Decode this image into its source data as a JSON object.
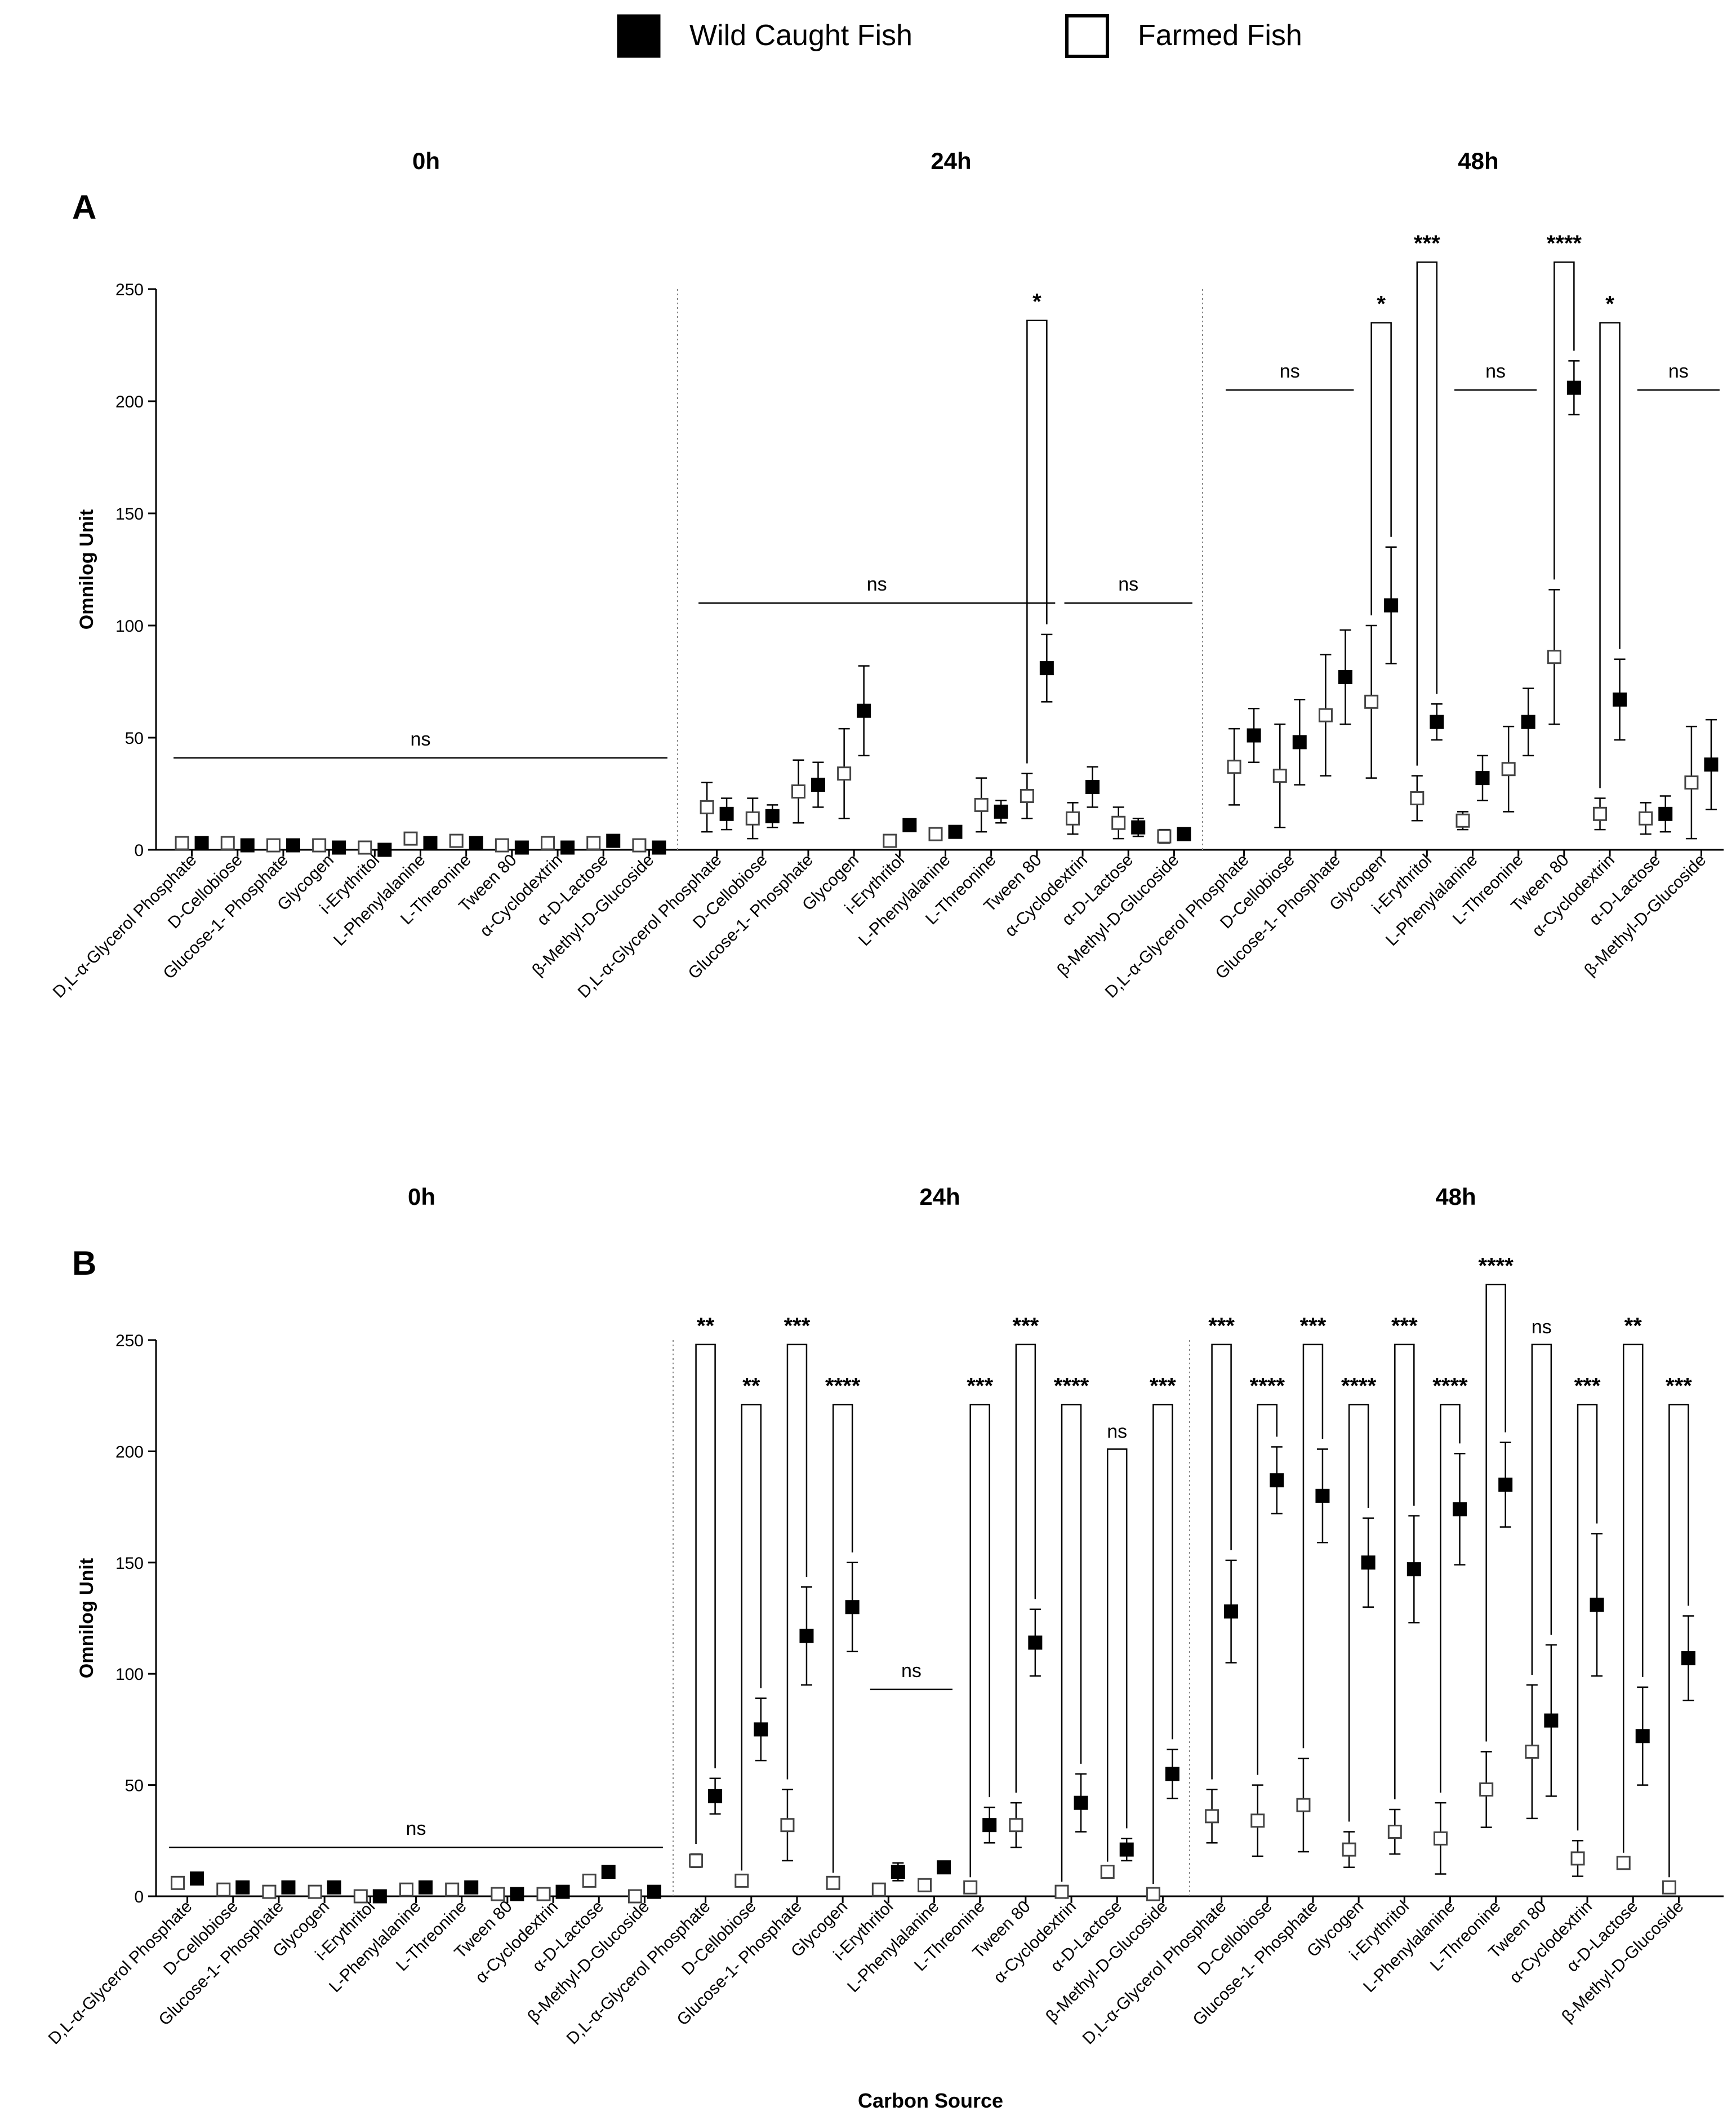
{
  "legend": [
    {
      "label": "Wild Caught Fish",
      "fill": "#000000"
    },
    {
      "label": "Farmed Fish",
      "fill": "#ffffff"
    }
  ],
  "colors": {
    "wild": "#000000",
    "farmed": "#ffffff",
    "stroke": "#000000",
    "divider": "#888888"
  },
  "chart_data": [
    {
      "panel": "A",
      "type": "scatter",
      "title": "",
      "ylabel": "Omnilog Unit",
      "xlabel": "",
      "ylim": [
        0,
        250
      ],
      "yticks": [
        0,
        50,
        100,
        150,
        200,
        250
      ],
      "time_groups": [
        "0h",
        "24h",
        "48h"
      ],
      "categories": [
        "D,L-α-Glycerol Phosphate",
        "D-Cellobiose",
        "Glucose-1- Phosphate",
        "Glycogen",
        "i-Erythritol",
        "L-Phenylalanine",
        "L-Threonine",
        "Tween 80",
        "α-Cyclodextrin",
        "α-D-Lactose",
        "β-Methyl-D-Glucoside"
      ],
      "series": [
        {
          "name": "Farmed Fish",
          "points": [
            [
              [
                3,
                0
              ],
              [
                3,
                0
              ],
              [
                2,
                0
              ],
              [
                2,
                0
              ],
              [
                1,
                0
              ],
              [
                5,
                0
              ],
              [
                4,
                0
              ],
              [
                2,
                0
              ],
              [
                3,
                0
              ],
              [
                3,
                0
              ],
              [
                2,
                0
              ]
            ],
            [
              [
                19,
                11
              ],
              [
                14,
                9
              ],
              [
                26,
                14
              ],
              [
                34,
                20
              ],
              [
                4,
                0
              ],
              [
                7,
                0
              ],
              [
                20,
                12
              ],
              [
                24,
                10
              ],
              [
                14,
                7
              ],
              [
                12,
                7
              ],
              [
                6,
                3
              ]
            ],
            [
              [
                37,
                17
              ],
              [
                33,
                23
              ],
              [
                60,
                27
              ],
              [
                66,
                34
              ],
              [
                23,
                10
              ],
              [
                13,
                4
              ],
              [
                36,
                19
              ],
              [
                86,
                30
              ],
              [
                16,
                7
              ],
              [
                14,
                7
              ],
              [
                30,
                25
              ]
            ]
          ]
        },
        {
          "name": "Wild Caught Fish",
          "points": [
            [
              [
                3,
                0
              ],
              [
                2,
                0
              ],
              [
                2,
                0
              ],
              [
                1,
                0
              ],
              [
                0,
                0
              ],
              [
                3,
                0
              ],
              [
                3,
                0
              ],
              [
                1,
                0
              ],
              [
                1,
                0
              ],
              [
                4,
                0
              ],
              [
                1,
                0
              ]
            ],
            [
              [
                16,
                7
              ],
              [
                15,
                5
              ],
              [
                29,
                10
              ],
              [
                62,
                20
              ],
              [
                11,
                0
              ],
              [
                8,
                0
              ],
              [
                17,
                5
              ],
              [
                81,
                15
              ],
              [
                28,
                9
              ],
              [
                10,
                4
              ],
              [
                7,
                0
              ]
            ],
            [
              [
                51,
                12
              ],
              [
                48,
                19
              ],
              [
                77,
                21
              ],
              [
                109,
                26
              ],
              [
                57,
                8
              ],
              [
                32,
                10
              ],
              [
                57,
                15
              ],
              [
                206,
                12
              ],
              [
                67,
                18
              ],
              [
                16,
                8
              ],
              [
                38,
                20
              ]
            ]
          ]
        }
      ],
      "significance": [
        {
          "group": "0h",
          "type": "span",
          "from": 0,
          "to": 10,
          "label": "ns",
          "value": 41
        },
        {
          "group": "24h",
          "type": "span",
          "from": 0,
          "to": 7,
          "label": "ns",
          "value": 110
        },
        {
          "group": "24h",
          "type": "bracket",
          "index": 7,
          "label": "*",
          "value": 236
        },
        {
          "group": "24h",
          "type": "span",
          "from": 8,
          "to": 10,
          "label": "ns",
          "value": 110
        },
        {
          "group": "48h",
          "type": "span",
          "from": 0,
          "to": 2,
          "label": "ns",
          "value": 205
        },
        {
          "group": "48h",
          "type": "bracket",
          "index": 3,
          "label": "*",
          "value": 235
        },
        {
          "group": "48h",
          "type": "bracket",
          "index": 4,
          "label": "***",
          "value": 262
        },
        {
          "group": "48h",
          "type": "span",
          "from": 5,
          "to": 6,
          "label": "ns",
          "value": 205
        },
        {
          "group": "48h",
          "type": "bracket",
          "index": 7,
          "label": "****",
          "value": 262
        },
        {
          "group": "48h",
          "type": "bracket",
          "index": 8,
          "label": "*",
          "value": 235
        },
        {
          "group": "48h",
          "type": "span",
          "from": 9,
          "to": 10,
          "label": "ns",
          "value": 205
        }
      ]
    },
    {
      "panel": "B",
      "type": "scatter",
      "title": "",
      "ylabel": "Omnilog Unit",
      "xlabel": "Carbon Source",
      "ylim": [
        0,
        250
      ],
      "yticks": [
        0,
        50,
        100,
        150,
        200,
        250
      ],
      "time_groups": [
        "0h",
        "24h",
        "48h"
      ],
      "categories": [
        "D,L-α-Glycerol Phosphate",
        "D-Cellobiose",
        "Glucose-1- Phosphate",
        "Glycogen",
        "i-Erythritol",
        "L-Phenylalanine",
        "L-Threonine",
        "Tween 80",
        "α-Cyclodextrin",
        "α-D-Lactose",
        "β-Methyl-D-Glucoside"
      ],
      "series": [
        {
          "name": "Farmed Fish",
          "points": [
            [
              [
                6,
                0
              ],
              [
                3,
                0
              ],
              [
                2,
                0
              ],
              [
                2,
                0
              ],
              [
                0,
                0
              ],
              [
                3,
                0
              ],
              [
                3,
                0
              ],
              [
                1,
                0
              ],
              [
                1,
                0
              ],
              [
                7,
                0
              ],
              [
                0,
                0
              ]
            ],
            [
              [
                16,
                3
              ],
              [
                7,
                0
              ],
              [
                32,
                16
              ],
              [
                6,
                0
              ],
              [
                3,
                0
              ],
              [
                5,
                0
              ],
              [
                4,
                0
              ],
              [
                32,
                10
              ],
              [
                2,
                0
              ],
              [
                11,
                0
              ],
              [
                1,
                0
              ]
            ],
            [
              [
                36,
                12
              ],
              [
                34,
                16
              ],
              [
                41,
                21
              ],
              [
                21,
                8
              ],
              [
                29,
                10
              ],
              [
                26,
                16
              ],
              [
                48,
                17
              ],
              [
                65,
                30
              ],
              [
                17,
                8
              ],
              [
                15,
                0
              ],
              [
                4,
                0
              ]
            ]
          ]
        },
        {
          "name": "Wild Caught Fish",
          "points": [
            [
              [
                8,
                0
              ],
              [
                4,
                0
              ],
              [
                4,
                0
              ],
              [
                4,
                0
              ],
              [
                0,
                0
              ],
              [
                4,
                0
              ],
              [
                4,
                0
              ],
              [
                1,
                0
              ],
              [
                2,
                0
              ],
              [
                11,
                0
              ],
              [
                2,
                0
              ]
            ],
            [
              [
                45,
                8
              ],
              [
                75,
                14
              ],
              [
                117,
                22
              ],
              [
                130,
                20
              ],
              [
                11,
                4
              ],
              [
                13,
                0
              ],
              [
                32,
                8
              ],
              [
                114,
                15
              ],
              [
                42,
                13
              ],
              [
                21,
                5
              ],
              [
                55,
                11
              ]
            ],
            [
              [
                128,
                23
              ],
              [
                187,
                15
              ],
              [
                180,
                21
              ],
              [
                150,
                20
              ],
              [
                147,
                24
              ],
              [
                174,
                25
              ],
              [
                185,
                19
              ],
              [
                79,
                34
              ],
              [
                131,
                32
              ],
              [
                72,
                22
              ],
              [
                107,
                19
              ]
            ]
          ]
        }
      ],
      "significance": [
        {
          "group": "0h",
          "type": "span",
          "from": 0,
          "to": 10,
          "label": "ns",
          "value": 22
        },
        {
          "group": "24h",
          "type": "bracket",
          "index": 0,
          "label": "**",
          "value": 248
        },
        {
          "group": "24h",
          "type": "bracket",
          "index": 1,
          "label": "**",
          "value": 221
        },
        {
          "group": "24h",
          "type": "bracket",
          "index": 2,
          "label": "***",
          "value": 248
        },
        {
          "group": "24h",
          "type": "bracket",
          "index": 3,
          "label": "****",
          "value": 221
        },
        {
          "group": "24h",
          "type": "span",
          "from": 4,
          "to": 5,
          "label": "ns",
          "value": 93
        },
        {
          "group": "24h",
          "type": "bracket",
          "index": 6,
          "label": "***",
          "value": 221
        },
        {
          "group": "24h",
          "type": "bracket",
          "index": 7,
          "label": "***",
          "value": 248
        },
        {
          "group": "24h",
          "type": "bracket",
          "index": 8,
          "label": "****",
          "value": 221
        },
        {
          "group": "24h",
          "type": "bracket",
          "index": 9,
          "label": "ns",
          "value": 201
        },
        {
          "group": "24h",
          "type": "bracket",
          "index": 10,
          "label": "***",
          "value": 221
        },
        {
          "group": "48h",
          "type": "bracket",
          "index": 0,
          "label": "***",
          "value": 248
        },
        {
          "group": "48h",
          "type": "bracket",
          "index": 1,
          "label": "****",
          "value": 221
        },
        {
          "group": "48h",
          "type": "bracket",
          "index": 2,
          "label": "***",
          "value": 248
        },
        {
          "group": "48h",
          "type": "bracket",
          "index": 3,
          "label": "****",
          "value": 221
        },
        {
          "group": "48h",
          "type": "bracket",
          "index": 4,
          "label": "***",
          "value": 248
        },
        {
          "group": "48h",
          "type": "bracket",
          "index": 5,
          "label": "****",
          "value": 221
        },
        {
          "group": "48h",
          "type": "bracket",
          "index": 6,
          "label": "****",
          "value": 275
        },
        {
          "group": "48h",
          "type": "bracket",
          "index": 7,
          "label": "ns",
          "value": 248
        },
        {
          "group": "48h",
          "type": "bracket",
          "index": 8,
          "label": "***",
          "value": 221
        },
        {
          "group": "48h",
          "type": "bracket",
          "index": 9,
          "label": "**",
          "value": 248
        },
        {
          "group": "48h",
          "type": "bracket",
          "index": 10,
          "label": "***",
          "value": 221
        }
      ]
    }
  ]
}
